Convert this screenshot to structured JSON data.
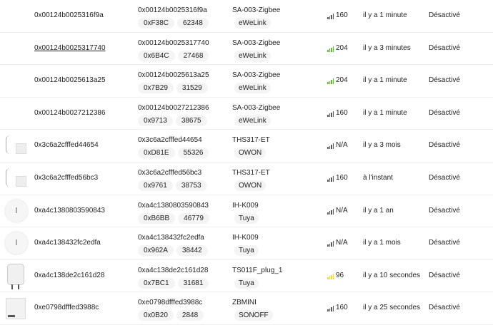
{
  "status_colors": {
    "gray": "#555555",
    "green": "#52c41a",
    "yellow": "#fadb14"
  },
  "devices": [
    {
      "image": "plug-us",
      "name": "0x00124b0025316f9a",
      "ieee": "0x00124b0025316f9a",
      "nwk": "0xF38C",
      "nwk_dec": "62348",
      "model": "SA-003-Zigbee",
      "vendor": "eWeLink",
      "lqi": "160",
      "lqi_level": "gray",
      "last_seen": "il y a 1 minute",
      "availability": "Désactivé"
    },
    {
      "image": "plug-us",
      "name": "0x00124b0025317740",
      "ieee": "0x00124b0025317740",
      "nwk": "0x6B4C",
      "nwk_dec": "27468",
      "model": "SA-003-Zigbee",
      "vendor": "eWeLink",
      "lqi": "204",
      "lqi_level": "green",
      "last_seen": "il y a 3 minutes",
      "availability": "Désactivé",
      "hover": true
    },
    {
      "image": "plug-us",
      "name": "0x00124b0025613a25",
      "ieee": "0x00124b0025613a25",
      "nwk": "0x7B29",
      "nwk_dec": "31529",
      "model": "SA-003-Zigbee",
      "vendor": "eWeLink",
      "lqi": "204",
      "lqi_level": "green",
      "last_seen": "il y a 1 minute",
      "availability": "Désactivé"
    },
    {
      "image": "plug-us",
      "name": "0x00124b0027212386",
      "ieee": "0x00124b0027212386",
      "nwk": "0x9713",
      "nwk_dec": "38675",
      "model": "SA-003-Zigbee",
      "vendor": "eWeLink",
      "lqi": "160",
      "lqi_level": "gray",
      "last_seen": "il y a 1 minute",
      "availability": "Désactivé"
    },
    {
      "image": "ths",
      "name": "0x3c6a2cfffed44654",
      "ieee": "0x3c6a2cfffed44654",
      "nwk": "0xD81E",
      "nwk_dec": "55326",
      "model": "THS317-ET",
      "vendor": "OWON",
      "lqi": "N/A",
      "lqi_level": "gray",
      "last_seen": "il y a 3 mois",
      "availability": "Désactivé"
    },
    {
      "image": "ths",
      "name": "0x3c6a2cfffed56bc3",
      "ieee": "0x3c6a2cfffed56bc3",
      "nwk": "0x9761",
      "nwk_dec": "38753",
      "model": "THS317-ET",
      "vendor": "OWON",
      "lqi": "160",
      "lqi_level": "gray",
      "last_seen": "à l'instant",
      "availability": "Désactivé"
    },
    {
      "image": "round",
      "name": "0xa4c1380803590843",
      "ieee": "0xa4c1380803590843",
      "nwk": "0xB6BB",
      "nwk_dec": "46779",
      "model": "IH-K009",
      "vendor": "Tuya",
      "lqi": "N/A",
      "lqi_level": "gray",
      "last_seen": "il y a 1 an",
      "availability": "Désactivé"
    },
    {
      "image": "round",
      "name": "0xa4c138432fc2edfa",
      "ieee": "0xa4c138432fc2edfa",
      "nwk": "0x962A",
      "nwk_dec": "38442",
      "model": "IH-K009",
      "vendor": "Tuya",
      "lqi": "N/A",
      "lqi_level": "gray",
      "last_seen": "il y a 1 mois",
      "availability": "Désactivé"
    },
    {
      "image": "eu",
      "name": "0xa4c138de2c161d28",
      "ieee": "0xa4c138de2c161d28",
      "nwk": "0x7BC1",
      "nwk_dec": "31681",
      "model": "TS011F_plug_1",
      "vendor": "Tuya",
      "lqi": "96",
      "lqi_level": "yellow",
      "last_seen": "il y a 10 secondes",
      "availability": "Désactivé"
    },
    {
      "image": "box",
      "name": "0xe0798dfffed3988c",
      "ieee": "0xe0798dfffed3988c",
      "nwk": "0x0B20",
      "nwk_dec": "2848",
      "model": "ZBMINI",
      "vendor": "SONOFF",
      "lqi": "160",
      "lqi_level": "gray",
      "last_seen": "il y a 25 secondes",
      "availability": "Désactivé"
    }
  ]
}
